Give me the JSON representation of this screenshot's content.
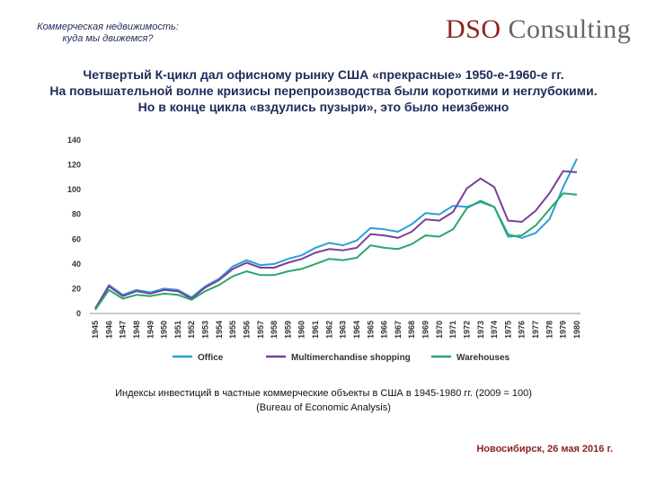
{
  "header": {
    "subtitle_line1": "Коммерческая недвижимость:",
    "subtitle_line2": "куда мы движемся?",
    "logo_part1": "DSO",
    "logo_part2": " Consulting"
  },
  "headline": {
    "line1": "Четвертый К-цикл дал офисному рынку США «прекрасные» 1950-е-1960-е гг.",
    "line2": "На повышательной волне кризисы перепроизводства были короткими и неглубокими.",
    "line3": "Но в конце цикла «вздулись пузыри», это было неизбежно"
  },
  "caption": {
    "line1": "Индексы инвестиций в частные коммерческие объекты в США в 1945-1980 гг. (2009 = 100)",
    "line2": "(Bureau of Economic Analysis)"
  },
  "footer": "Новосибирск, 26 мая 2016 г.",
  "chart_data": {
    "type": "line",
    "title": "",
    "xlabel": "",
    "ylabel": "",
    "ylim": [
      0,
      140
    ],
    "yticks": [
      0,
      20,
      40,
      60,
      80,
      100,
      120,
      140
    ],
    "grid": false,
    "legend_position": "bottom",
    "x": [
      "1945",
      "1946",
      "1947",
      "1948",
      "1949",
      "1950",
      "1951",
      "1952",
      "1953",
      "1954",
      "1955",
      "1956",
      "1957",
      "1958",
      "1959",
      "1960",
      "1961",
      "1962",
      "1963",
      "1964",
      "1965",
      "1966",
      "1967",
      "1968",
      "1969",
      "1970",
      "1971",
      "1972",
      "1973",
      "1974",
      "1975",
      "1976",
      "1977",
      "1978",
      "1979",
      "1980"
    ],
    "series": [
      {
        "name": "Office",
        "color": "#2aa0d8",
        "values": [
          4,
          23,
          15,
          19,
          17,
          20,
          19,
          13,
          22,
          28,
          38,
          43,
          39,
          40,
          44,
          47,
          53,
          57,
          55,
          59,
          69,
          68,
          66,
          72,
          81,
          80,
          87,
          86,
          90,
          86,
          64,
          61,
          65,
          76,
          102,
          125
        ]
      },
      {
        "name": "Multimerchandise shopping",
        "color": "#7b3f98",
        "values": [
          4,
          22,
          14,
          18,
          16,
          19,
          18,
          12,
          21,
          27,
          36,
          41,
          37,
          37,
          41,
          44,
          49,
          52,
          51,
          53,
          64,
          63,
          61,
          66,
          76,
          75,
          82,
          101,
          109,
          102,
          75,
          74,
          83,
          97,
          115,
          114
        ]
      },
      {
        "name": "Warehouses",
        "color": "#2ca66c",
        "values": [
          3,
          19,
          12,
          15,
          14,
          16,
          15,
          11,
          18,
          23,
          30,
          34,
          31,
          31,
          34,
          36,
          40,
          44,
          43,
          45,
          55,
          53,
          52,
          56,
          63,
          62,
          68,
          85,
          91,
          86,
          62,
          63,
          71,
          84,
          97,
          96
        ]
      }
    ]
  }
}
